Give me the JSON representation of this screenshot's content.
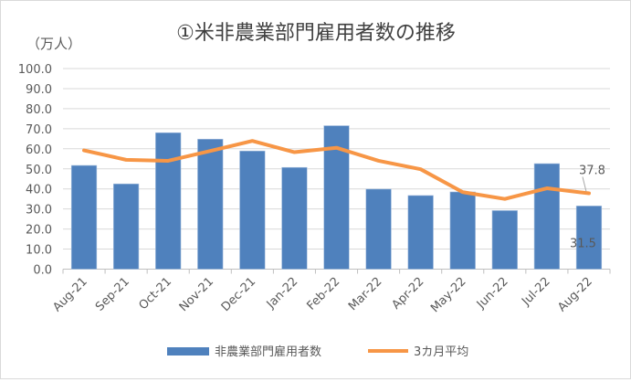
{
  "chart_data": {
    "type": "bar",
    "title": "①米非農業部門雇用者数の推移",
    "ylabel": "（万人）",
    "xlabel": "",
    "ylim": [
      0,
      100
    ],
    "yticks": [
      "0.0",
      "10.0",
      "20.0",
      "30.0",
      "40.0",
      "50.0",
      "60.0",
      "70.0",
      "80.0",
      "90.0",
      "100.0"
    ],
    "grid": true,
    "legend_position": "bottom",
    "categories": [
      "Aug-21",
      "Sep-21",
      "Oct-21",
      "Nov-21",
      "Dec-21",
      "Jan-22",
      "Feb-22",
      "Mar-22",
      "Apr-22",
      "May-22",
      "Jun-22",
      "Jul-22",
      "Aug-22"
    ],
    "series": [
      {
        "name": "非農業部門雇用者数",
        "type": "bar",
        "color": "#4f81bd",
        "values": [
          51.7,
          42.5,
          68.0,
          64.8,
          58.9,
          50.7,
          71.5,
          39.9,
          36.7,
          38.5,
          29.2,
          52.6,
          31.5
        ]
      },
      {
        "name": "3カ月平均",
        "type": "line",
        "color": "#f79646",
        "values": [
          59.2,
          54.5,
          54.0,
          58.9,
          63.9,
          58.3,
          60.5,
          54.0,
          49.8,
          38.4,
          35.0,
          40.3,
          37.8
        ]
      }
    ],
    "annotations": [
      "37.8",
      "31.5"
    ]
  }
}
